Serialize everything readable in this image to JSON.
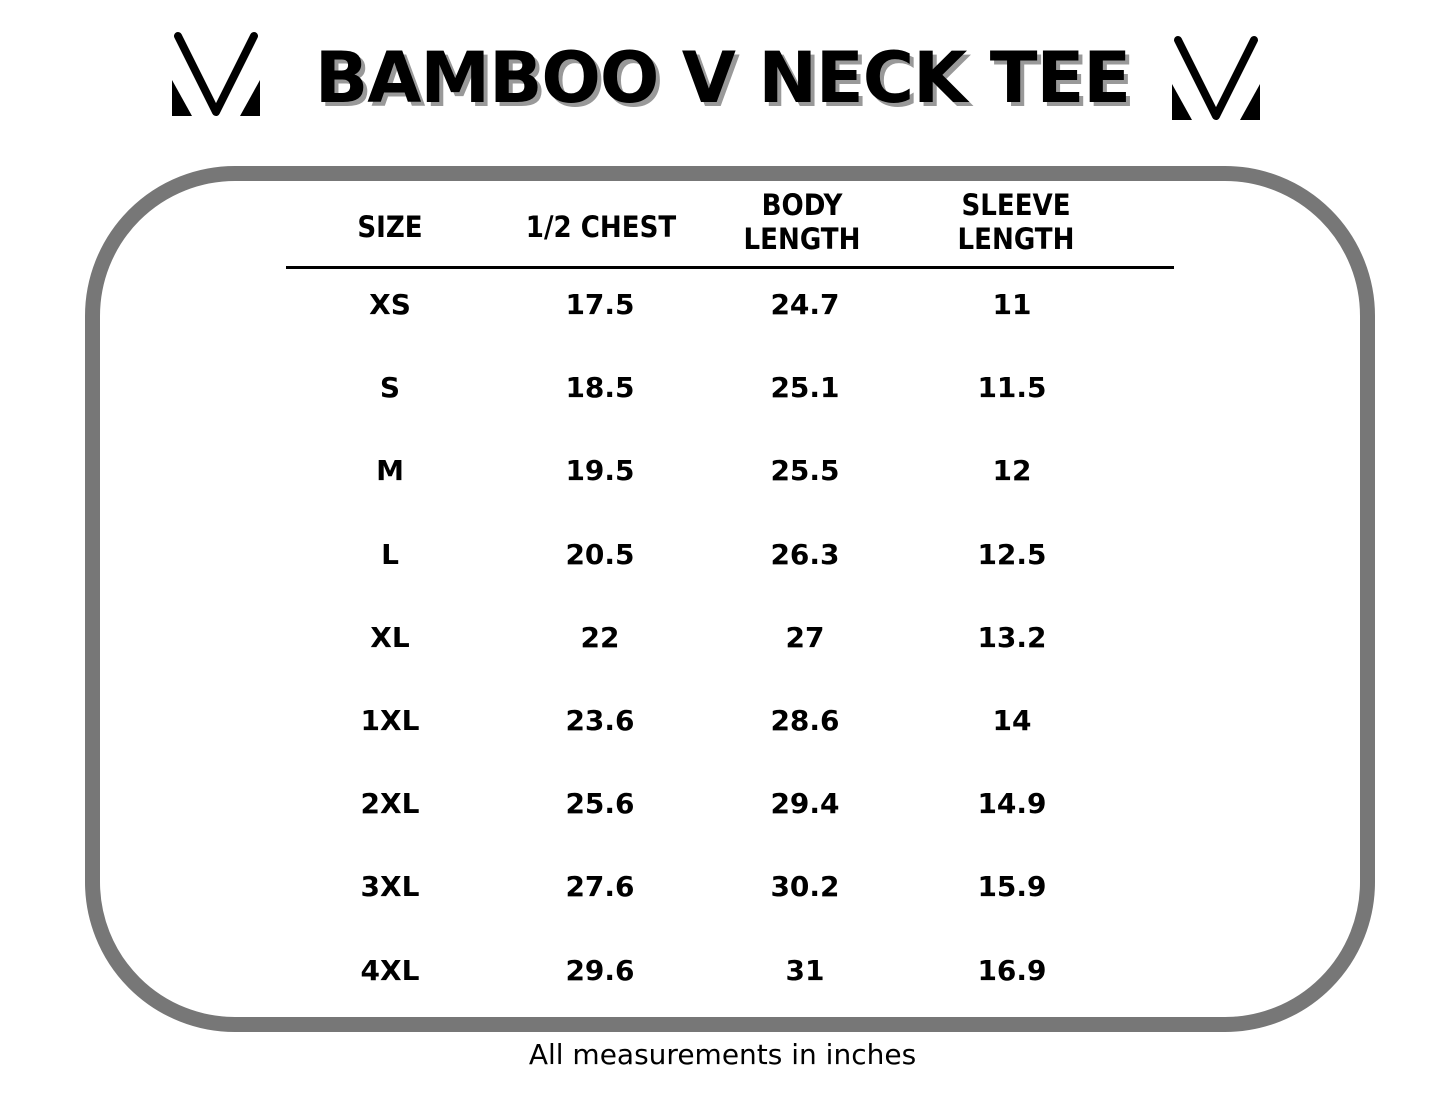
{
  "title": "BAMBOO V NECK TEE",
  "logo_icon": "v-logo-icon",
  "frame_color": "#777777",
  "table": {
    "headers": [
      [
        "SIZE"
      ],
      [
        "1/2 CHEST"
      ],
      [
        "BODY",
        "LENGTH"
      ],
      [
        "SLEEVE",
        "LENGTH"
      ]
    ],
    "rows": [
      [
        "XS",
        "17.5",
        "24.7",
        "11"
      ],
      [
        "S",
        "18.5",
        "25.1",
        "11.5"
      ],
      [
        "M",
        "19.5",
        "25.5",
        "12"
      ],
      [
        "L",
        "20.5",
        "26.3",
        "12.5"
      ],
      [
        "XL",
        "22",
        "27",
        "13.2"
      ],
      [
        "1XL",
        "23.6",
        "28.6",
        "14"
      ],
      [
        "2XL",
        "25.6",
        "29.4",
        "14.9"
      ],
      [
        "3XL",
        "27.6",
        "30.2",
        "15.9"
      ],
      [
        "4XL",
        "29.6",
        "31",
        "16.9"
      ]
    ]
  },
  "footnote": "All measurements in inches"
}
